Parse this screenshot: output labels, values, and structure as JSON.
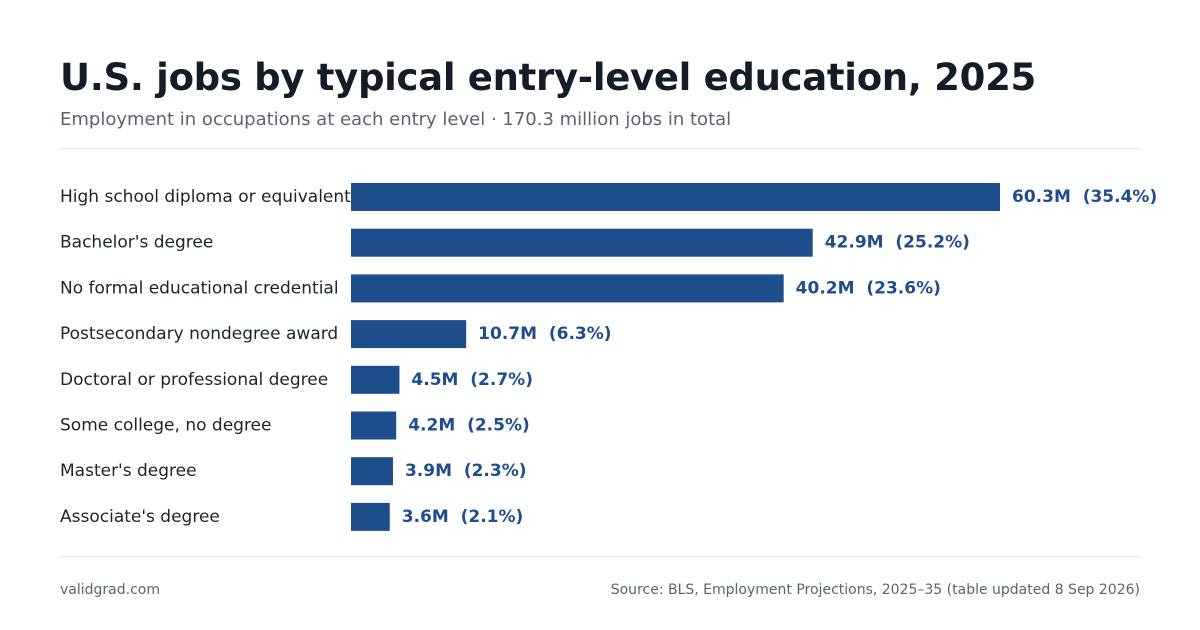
{
  "header": {
    "title": "U.S. jobs by typical entry-level education, 2025",
    "subtitle": "Employment in occupations at each entry level · 170.3 million jobs in total"
  },
  "footer": {
    "site": "validgrad.com",
    "source": "Source: BLS, Employment Projections, 2025–35 (table updated 8 Sep 2026)"
  },
  "colors": {
    "bar": "#1f4e8c",
    "label": "#1f4e8c",
    "category": "#1c2430"
  },
  "chart_data": {
    "type": "bar",
    "orientation": "horizontal",
    "categories": [
      "High school diploma or equivalent",
      "Bachelor's degree",
      "No formal educational credential",
      "Postsecondary nondegree award",
      "Doctoral or professional degree",
      "Some college, no degree",
      "Master's degree",
      "Associate's degree"
    ],
    "values": [
      60.3,
      42.9,
      40.2,
      10.7,
      4.5,
      4.2,
      3.9,
      3.6
    ],
    "value_labels": [
      "60.3M  (35.4%)",
      "42.9M  (25.2%)",
      "40.2M  (23.6%)",
      "10.7M  (6.3%)",
      "4.5M  (2.7%)",
      "4.2M  (2.5%)",
      "3.9M  (2.3%)",
      "3.6M  (2.1%)"
    ],
    "unit": "million jobs",
    "total": 170.3,
    "xlim": [
      0,
      60.3
    ],
    "grid": false,
    "legend": "none"
  }
}
